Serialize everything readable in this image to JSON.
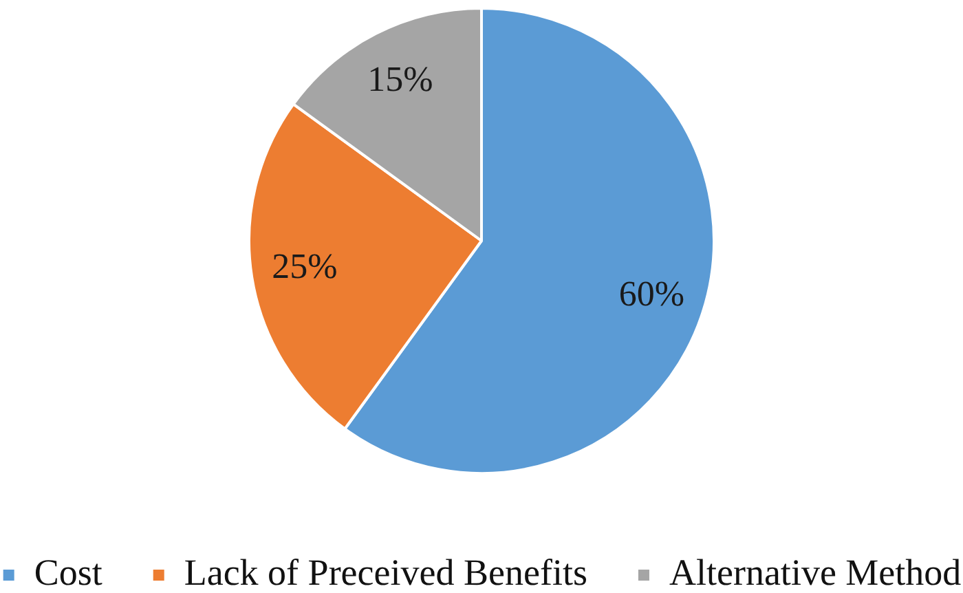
{
  "chart_data": {
    "type": "pie",
    "categories": [
      "Cost",
      "Lack of Preceived Benefits",
      "Alternative Method"
    ],
    "values": [
      60,
      25,
      15
    ],
    "colors": [
      "#5b9bd5",
      "#ed7d31",
      "#a5a5a5"
    ],
    "value_labels": [
      "60%",
      "25%",
      "15%"
    ],
    "legend": "bottom"
  }
}
